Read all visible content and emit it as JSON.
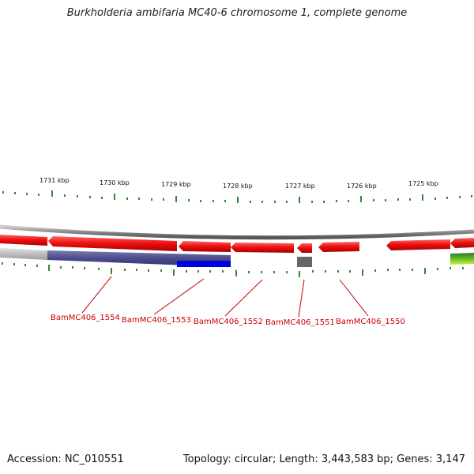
{
  "title": "Burkholderia ambifaria MC40-6 chromosome 1, complete genome",
  "accession_text": "Accession: NC_010551",
  "topology_text": "Topology: circular; Length: 3,443,583 bp; Genes: 3,147",
  "scale_labels": [
    "1731 kbp",
    "1730 kbp",
    "1729 kbp",
    "1728 kbp",
    "1727 kbp",
    "1726 kbp",
    "1725 kbp"
  ],
  "gene_labels": [
    "BamMC406_1554",
    "BamMC406_1553",
    "BamMC406_1552",
    "BamMC406_1551",
    "BamMC406_1550"
  ],
  "colors": {
    "gene": "#ee1111",
    "label": "#cc0000",
    "tick": "#338833",
    "backbone": "#888888",
    "gc_dark": "#4a4a8a",
    "gc_blue": "#0000dd",
    "gc_gray": "#666666",
    "gc_green": "#66aa22"
  }
}
